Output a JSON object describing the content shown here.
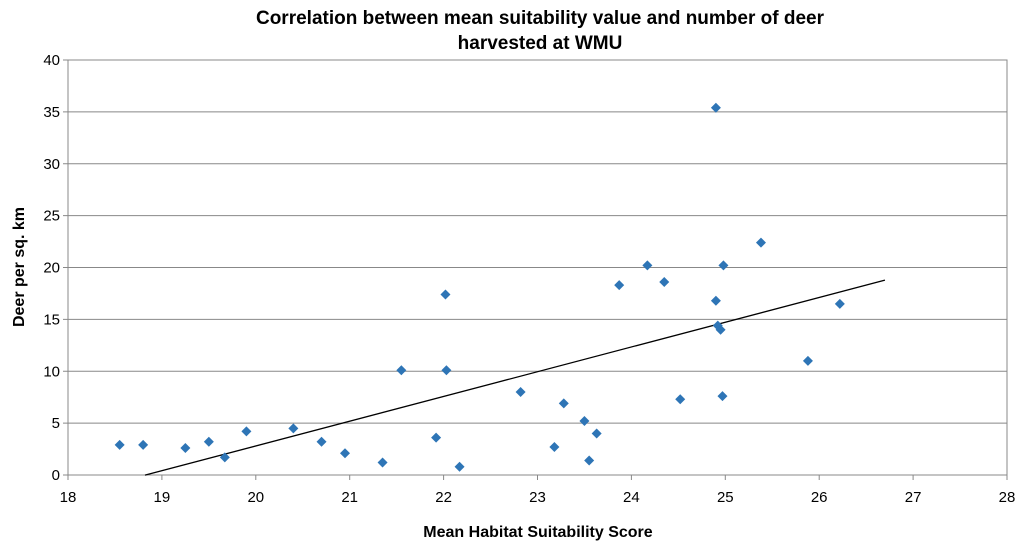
{
  "chart_data": {
    "type": "scatter",
    "title_line1": "Correlation between  mean suitability value and number of deer",
    "title_line2": "harvested at WMU",
    "xlabel": "Mean Habitat Suitability Score",
    "ylabel": "Deer per sq. km",
    "xlim": [
      18,
      28
    ],
    "ylim": [
      0,
      40
    ],
    "xticks": [
      "18",
      "19",
      "20",
      "21",
      "22",
      "23",
      "24",
      "25",
      "26",
      "27",
      "28"
    ],
    "yticks": [
      "0",
      "5",
      "10",
      "15",
      "20",
      "25",
      "30",
      "35",
      "40"
    ],
    "grid": "horizontal",
    "marker_color": "#2e75b6",
    "series": [
      {
        "name": "WMU",
        "points": [
          [
            18.55,
            2.9
          ],
          [
            18.8,
            2.9
          ],
          [
            19.25,
            2.6
          ],
          [
            19.5,
            3.2
          ],
          [
            19.67,
            1.7
          ],
          [
            19.9,
            4.2
          ],
          [
            20.4,
            4.5
          ],
          [
            20.7,
            3.2
          ],
          [
            20.95,
            2.1
          ],
          [
            21.35,
            1.2
          ],
          [
            21.55,
            10.1
          ],
          [
            21.92,
            3.6
          ],
          [
            22.02,
            17.4
          ],
          [
            22.03,
            10.1
          ],
          [
            22.17,
            0.8
          ],
          [
            22.82,
            8.0
          ],
          [
            23.18,
            2.7
          ],
          [
            23.28,
            6.9
          ],
          [
            23.5,
            5.2
          ],
          [
            23.55,
            1.4
          ],
          [
            23.63,
            4.0
          ],
          [
            23.87,
            18.3
          ],
          [
            24.17,
            20.2
          ],
          [
            24.35,
            18.6
          ],
          [
            24.52,
            7.3
          ],
          [
            24.9,
            35.4
          ],
          [
            24.9,
            16.8
          ],
          [
            24.92,
            14.4
          ],
          [
            24.95,
            14.0
          ],
          [
            24.97,
            7.6
          ],
          [
            24.98,
            20.2
          ],
          [
            25.38,
            22.4
          ],
          [
            25.88,
            11.0
          ],
          [
            26.22,
            16.5
          ]
        ]
      }
    ],
    "trendline": {
      "x_start": 18.82,
      "x_end": 26.7,
      "slope": 2.385,
      "intercept": -44.9
    }
  }
}
